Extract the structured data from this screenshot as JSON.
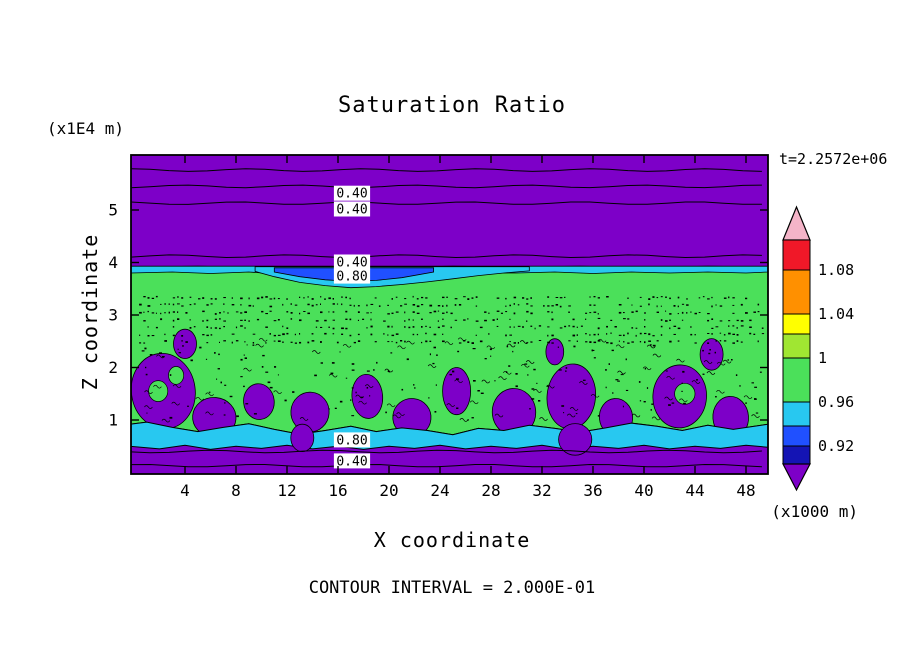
{
  "chart_data": {
    "type": "heatmap",
    "variant": "filled-contour-plot",
    "title": "Saturation Ratio",
    "xlabel": "X coordinate",
    "ylabel": "Z coordinate",
    "x_unit_label": "(x1000 m)",
    "y_unit_label": "(x1E4 m)",
    "time_label": "t=2.2572e+06",
    "contour_interval_label": "CONTOUR INTERVAL = 2.000E-01",
    "contour_interval": 0.2,
    "x_ticks": [
      4,
      8,
      12,
      16,
      20,
      24,
      28,
      32,
      36,
      40,
      44,
      48
    ],
    "y_ticks": [
      1,
      2,
      3,
      4,
      5
    ],
    "xlim": [
      -0.25,
      49.75
    ],
    "ylim": [
      -0.04,
      6.08
    ],
    "grid": false,
    "legend_position": "right-colorbar",
    "colors": {
      "purple": "#7d00c8",
      "green": "#4be05a",
      "cyan": "#28c8f0",
      "blue": "#2050ff",
      "navy": "#1414b4",
      "yellow_green": "#a0e632",
      "yellow": "#ffff00",
      "orange": "#ff9000",
      "red": "#f01828",
      "pink": "#f4b4c8",
      "line": "#000000"
    },
    "colorbar": {
      "tick_labels": [
        "1.08",
        "1.04",
        "1",
        "0.96",
        "0.92"
      ],
      "segments_top_to_bottom": [
        {
          "name": "above-range-arrow",
          "color": "#f4b4c8"
        },
        {
          "name": "red",
          "color": "#f01828"
        },
        {
          "name": "orange",
          "color": "#ff9000"
        },
        {
          "name": "yellow",
          "color": "#ffff00"
        },
        {
          "name": "yellow-green",
          "color": "#a0e632"
        },
        {
          "name": "green",
          "color": "#4be05a"
        },
        {
          "name": "cyan",
          "color": "#28c8f0"
        },
        {
          "name": "blue",
          "color": "#2050ff"
        },
        {
          "name": "navy",
          "color": "#1414b4"
        },
        {
          "name": "below-range-arrow",
          "color": "#7d00c8"
        }
      ]
    },
    "contour_labels": [
      {
        "text": "0.40",
        "x": 17.1,
        "z": 5.32
      },
      {
        "text": "0.40",
        "x": 17.1,
        "z": 5.02
      },
      {
        "text": "0.40",
        "x": 17.1,
        "z": 4.01
      },
      {
        "text": "0.80",
        "x": 17.1,
        "z": 3.74
      },
      {
        "text": "0.80",
        "x": 17.1,
        "z": 0.62
      },
      {
        "text": "0.40",
        "x": 17.1,
        "z": 0.22
      }
    ],
    "contour_lines_z": [
      5.76,
      5.45,
      5.13,
      4.12,
      0.4,
      0.13
    ],
    "regions": {
      "description": "Saturation-ratio field: dry purple (<0.92) above z~3.9 and below z~0.5, saturated green band (~1.0) between z~0.9 and 3.9 with speckled contour texture and purple sub-saturated pockets near its base, cyan/blue sub-saturated (~0.96) layers along both edges of the green band.",
      "green_band_top": [
        [
          -0.25,
          3.91
        ],
        [
          5,
          3.93
        ],
        [
          10,
          3.9
        ],
        [
          15,
          3.92
        ],
        [
          20,
          3.9
        ],
        [
          25,
          3.93
        ],
        [
          30,
          3.91
        ],
        [
          35,
          3.93
        ],
        [
          40,
          3.9
        ],
        [
          45,
          3.93
        ],
        [
          49.75,
          3.91
        ]
      ],
      "green_band_bottom": [
        [
          -0.25,
          0.92
        ],
        [
          1,
          0.96
        ],
        [
          3,
          0.86
        ],
        [
          5,
          0.78
        ],
        [
          7,
          0.86
        ],
        [
          9,
          0.93
        ],
        [
          11,
          0.82
        ],
        [
          13,
          0.73
        ],
        [
          15,
          0.8
        ],
        [
          17,
          0.88
        ],
        [
          19,
          0.78
        ],
        [
          21,
          0.85
        ],
        [
          23,
          0.8
        ],
        [
          25,
          0.72
        ],
        [
          27,
          0.84
        ],
        [
          29,
          0.8
        ],
        [
          31,
          0.9
        ],
        [
          33,
          0.84
        ],
        [
          35,
          0.77
        ],
        [
          37,
          0.85
        ],
        [
          39,
          0.94
        ],
        [
          41,
          0.88
        ],
        [
          43,
          0.8
        ],
        [
          45,
          0.9
        ],
        [
          47,
          0.82
        ],
        [
          49.75,
          0.92
        ]
      ],
      "cyan_bottom_strip_bottom": [
        [
          -0.25,
          0.5
        ],
        [
          2,
          0.45
        ],
        [
          4,
          0.52
        ],
        [
          6,
          0.44
        ],
        [
          8,
          0.5
        ],
        [
          10,
          0.46
        ],
        [
          12,
          0.52
        ],
        [
          14,
          0.45
        ],
        [
          16,
          0.5
        ],
        [
          18,
          0.44
        ],
        [
          20,
          0.5
        ],
        [
          22,
          0.46
        ],
        [
          24,
          0.52
        ],
        [
          26,
          0.45
        ],
        [
          28,
          0.5
        ],
        [
          30,
          0.46
        ],
        [
          32,
          0.52
        ],
        [
          34,
          0.44
        ],
        [
          36,
          0.5
        ],
        [
          38,
          0.46
        ],
        [
          40,
          0.52
        ],
        [
          42,
          0.45
        ],
        [
          44,
          0.5
        ],
        [
          46,
          0.46
        ],
        [
          48,
          0.52
        ],
        [
          49.75,
          0.48
        ]
      ],
      "cyan_top_strip_bottom": [
        [
          -0.25,
          3.8
        ],
        [
          3,
          3.82
        ],
        [
          6,
          3.79
        ],
        [
          9,
          3.82
        ],
        [
          12,
          3.77
        ],
        [
          15,
          3.73
        ],
        [
          18,
          3.75
        ],
        [
          21,
          3.74
        ],
        [
          24,
          3.78
        ],
        [
          27,
          3.8
        ],
        [
          30,
          3.8
        ],
        [
          33,
          3.82
        ],
        [
          36,
          3.79
        ],
        [
          39,
          3.82
        ],
        [
          42,
          3.8
        ],
        [
          45,
          3.82
        ],
        [
          48,
          3.8
        ],
        [
          49.75,
          3.82
        ]
      ],
      "cyan_lens_bottom": [
        [
          9.5,
          3.83
        ],
        [
          11,
          3.73
        ],
        [
          13,
          3.62
        ],
        [
          15,
          3.56
        ],
        [
          17,
          3.52
        ],
        [
          19,
          3.54
        ],
        [
          21,
          3.58
        ],
        [
          23,
          3.63
        ],
        [
          25,
          3.69
        ],
        [
          27,
          3.75
        ],
        [
          29,
          3.8
        ],
        [
          31,
          3.84
        ]
      ],
      "blue_core_bottom": [
        [
          11,
          3.82
        ],
        [
          13,
          3.73
        ],
        [
          15,
          3.67
        ],
        [
          17,
          3.64
        ],
        [
          19,
          3.66
        ],
        [
          21,
          3.71
        ],
        [
          23.5,
          3.82
        ]
      ],
      "purple_blobs": [
        [
          2.3,
          1.55,
          2.5,
          0.72,
          -8
        ],
        [
          6.3,
          1.05,
          1.7,
          0.38,
          5
        ],
        [
          4.0,
          2.45,
          0.9,
          0.28,
          0
        ],
        [
          9.8,
          1.35,
          1.2,
          0.34,
          -6
        ],
        [
          13.8,
          1.15,
          1.5,
          0.38,
          4
        ],
        [
          18.3,
          1.45,
          1.2,
          0.42,
          -5
        ],
        [
          21.8,
          1.05,
          1.5,
          0.36,
          6
        ],
        [
          25.3,
          1.55,
          1.1,
          0.45,
          0
        ],
        [
          29.8,
          1.15,
          1.7,
          0.45,
          -4
        ],
        [
          34.3,
          1.45,
          1.9,
          0.62,
          6
        ],
        [
          37.8,
          1.05,
          1.3,
          0.36,
          -5
        ],
        [
          42.8,
          1.45,
          2.1,
          0.6,
          4
        ],
        [
          46.8,
          1.05,
          1.4,
          0.4,
          -4
        ],
        [
          45.3,
          2.25,
          0.9,
          0.3,
          0
        ],
        [
          33.0,
          2.3,
          0.7,
          0.25,
          0
        ]
      ],
      "green_islands": [
        [
          1.9,
          1.55,
          0.75,
          0.2
        ],
        [
          3.3,
          1.85,
          0.6,
          0.17
        ],
        [
          43.2,
          1.5,
          0.8,
          0.2
        ]
      ],
      "strip_notches": [
        [
          13.2,
          0.66,
          0.9,
          0.26
        ],
        [
          34.6,
          0.63,
          1.3,
          0.3
        ]
      ]
    }
  }
}
